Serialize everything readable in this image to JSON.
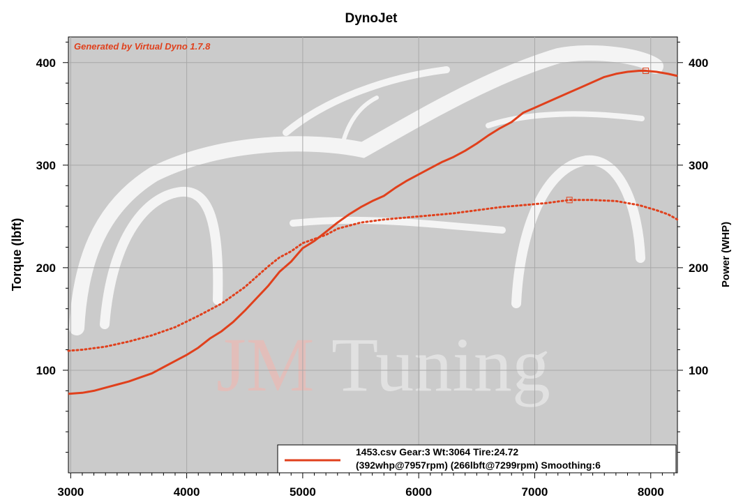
{
  "chart_data": {
    "type": "line",
    "title": "DynoJet",
    "watermark_credit": "Generated by Virtual Dyno 1.7.8",
    "watermark_jm": "JM",
    "watermark_tuning": "Tuning",
    "xlabel": "",
    "ylabel_left": "Torque (lbft)",
    "ylabel_right": "Power (WHP)",
    "xlim": [
      2980,
      8230
    ],
    "ylim": [
      0,
      425
    ],
    "x_ticks": [
      3000,
      4000,
      5000,
      6000,
      7000,
      8000
    ],
    "y_ticks": [
      100,
      200,
      300,
      400
    ],
    "grid": true,
    "plot_background": "#cbcbcb",
    "series_color": "#e0401c",
    "series": [
      {
        "name": "power",
        "style": "solid",
        "x": [
          2980,
          3100,
          3200,
          3300,
          3400,
          3500,
          3600,
          3700,
          3800,
          3900,
          4000,
          4100,
          4200,
          4300,
          4400,
          4500,
          4600,
          4700,
          4800,
          4900,
          5000,
          5100,
          5200,
          5300,
          5400,
          5500,
          5600,
          5700,
          5800,
          5900,
          6000,
          6100,
          6200,
          6300,
          6400,
          6500,
          6600,
          6700,
          6800,
          6900,
          7000,
          7100,
          7200,
          7300,
          7400,
          7500,
          7600,
          7700,
          7800,
          7900,
          7957,
          8050,
          8150,
          8230
        ],
        "values": [
          77,
          78,
          80,
          83,
          86,
          89,
          93,
          97,
          103,
          109,
          115,
          122,
          131,
          138,
          147,
          158,
          170,
          182,
          196,
          206,
          219,
          226,
          235,
          244,
          252,
          259,
          265,
          270,
          278,
          285,
          291,
          297,
          303,
          308,
          314,
          321,
          329,
          336,
          342,
          351,
          356,
          361,
          366,
          371,
          376,
          381,
          386,
          389,
          391,
          392,
          392,
          391,
          389,
          387
        ]
      },
      {
        "name": "torque",
        "style": "dotted",
        "x": [
          2980,
          3100,
          3300,
          3500,
          3700,
          3900,
          4100,
          4300,
          4500,
          4700,
          4800,
          4900,
          5000,
          5100,
          5200,
          5300,
          5500,
          5700,
          5900,
          6100,
          6300,
          6500,
          6700,
          6900,
          7100,
          7299,
          7500,
          7700,
          7900,
          8050,
          8150,
          8230
        ],
        "values": [
          119,
          120,
          123,
          128,
          134,
          142,
          153,
          165,
          181,
          201,
          210,
          216,
          224,
          228,
          232,
          238,
          244,
          247,
          249,
          251,
          253,
          256,
          259,
          261,
          263,
          266,
          266,
          265,
          261,
          256,
          252,
          247
        ]
      }
    ],
    "peak_markers": [
      {
        "series": "power",
        "x": 7957,
        "y": 392
      },
      {
        "series": "torque",
        "x": 7299,
        "y": 266
      }
    ],
    "legend": {
      "placement": "bottom-right",
      "line1": "1453.csv Gear:3 Wt:3064 Tire:24.72",
      "line2": "(392whp@7957rpm)  (266lbft@7299rpm)  Smoothing:6"
    }
  }
}
